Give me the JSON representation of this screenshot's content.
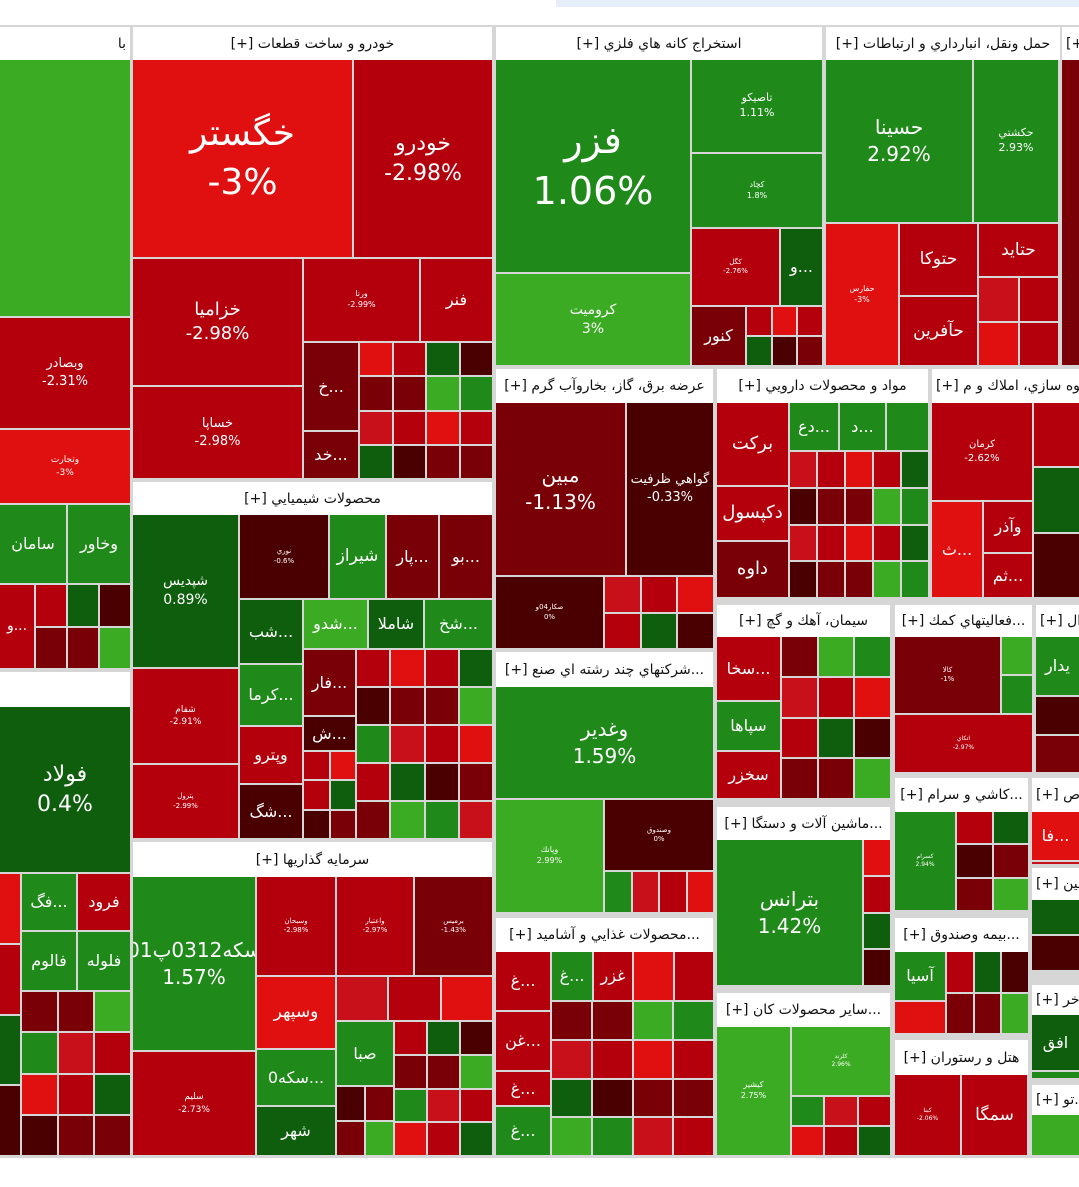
{
  "sectors": [
    {
      "title": "با",
      "tiles": [
        {
          "name": "وبصادر",
          "change": "-2.31%"
        },
        {
          "name": "وتجارت",
          "change": "-3%"
        },
        {
          "name": "وخاور"
        },
        {
          "name": "سامان"
        },
        {
          "name": "...و"
        }
      ]
    },
    {
      "title": "خودرو و ساخت قطعات [+]",
      "tiles": [
        {
          "name": "خگستر",
          "change": "-3%"
        },
        {
          "name": "خودرو",
          "change": "-2.98%"
        },
        {
          "name": "خزاميا",
          "change": "-2.98%"
        },
        {
          "name": "ورنا",
          "change": "-2.99%"
        },
        {
          "name": "فنر"
        },
        {
          "name": "خساپا",
          "change": "-2.98%"
        },
        {
          "name": "...خ"
        },
        {
          "name": "...خد"
        }
      ]
    },
    {
      "title": "محصولات شيميايي [+]",
      "tiles": [
        {
          "name": "شپديس",
          "change": "0.89%"
        },
        {
          "name": "شفام",
          "change": "-2.91%"
        },
        {
          "name": "پترول",
          "change": "-2.99%"
        },
        {
          "name": "نوري",
          "change": "-0.6%"
        },
        {
          "name": "شيراز"
        },
        {
          "name": "...پار"
        },
        {
          "name": "...بو"
        },
        {
          "name": "...شب"
        },
        {
          "name": "...شدو"
        },
        {
          "name": "شاملا"
        },
        {
          "name": "...شخ"
        },
        {
          "name": "...كرما"
        },
        {
          "name": "...فار"
        },
        {
          "name": "...ش"
        },
        {
          "name": "وپترو"
        },
        {
          "name": "...شگ"
        }
      ]
    },
    {
      "title": "سرمايه گذاريها [+]",
      "tiles": [
        {
          "name": "سكه0312پ01",
          "change": "1.57%"
        },
        {
          "name": "سليم",
          "change": "-2.73%"
        },
        {
          "name": "وسبحان",
          "change": "-2.98%"
        },
        {
          "name": "واعتبار",
          "change": "-2.97%"
        },
        {
          "name": "برميس",
          "change": "-1.43%"
        },
        {
          "name": "وسپهر"
        },
        {
          "name": "...سكه0"
        },
        {
          "name": "شهر"
        },
        {
          "name": "صبا"
        }
      ]
    },
    {
      "tiles": [
        {
          "name": "فولاد",
          "change": "0.4%"
        },
        {
          "name": "...فگ"
        },
        {
          "name": "فرود"
        },
        {
          "name": "فالوم"
        },
        {
          "name": "فلوله"
        }
      ]
    },
    {
      "title": "استخراج كانه هاي فلزي [+]",
      "tiles": [
        {
          "name": "فزر",
          "change": "1.06%"
        },
        {
          "name": "تاصيكو",
          "change": "1.11%"
        },
        {
          "name": "كچاد",
          "change": "1.8%"
        },
        {
          "name": "كروميت",
          "change": "3%"
        },
        {
          "name": "كگل",
          "change": "-2.76%"
        },
        {
          "name": "...و"
        },
        {
          "name": "كنور"
        }
      ]
    },
    {
      "title": "حمل ونقل، انبارداري و ارتباطات [+]",
      "tiles": [
        {
          "name": "حسينا",
          "change": "2.92%"
        },
        {
          "name": "حكشتي",
          "change": "2.93%"
        },
        {
          "name": "حفارس",
          "change": "-3%"
        },
        {
          "name": "حتوكا"
        },
        {
          "name": "حتايد"
        },
        {
          "name": "حآفرين"
        }
      ]
    },
    {
      "title": "[+]",
      "tiles": []
    },
    {
      "title": "عرضه برق، گاز، بخاروآب گرم [+]",
      "tiles": [
        {
          "name": "مبين",
          "change": "-1.13%"
        },
        {
          "name": "گواهي ظرفيت",
          "change": "-0.33%"
        },
        {
          "name": "صكار04و",
          "change": "0%"
        }
      ]
    },
    {
      "title": "مواد و محصولات دارويي [+]",
      "tiles": [
        {
          "name": "بركت"
        },
        {
          "name": "دكپسول"
        },
        {
          "name": "داوه"
        },
        {
          "name": "...دع"
        },
        {
          "name": "...د"
        }
      ]
    },
    {
      "title": "انبوه سازي، املاك و م [+]",
      "tiles": [
        {
          "name": "كرمان",
          "change": "-2.62%"
        },
        {
          "name": "...ث"
        },
        {
          "name": "وآذر"
        },
        {
          "name": "...ثم"
        }
      ]
    },
    {
      "title": "...شركتهاي چند رشته اي صنع [+]",
      "tiles": [
        {
          "name": "وغدير",
          "change": "1.59%"
        },
        {
          "name": "وپانك",
          "change": "2.99%"
        },
        {
          "name": "وصندوق",
          "change": "0%"
        }
      ]
    },
    {
      "title": "...محصولات غذايي و آشاميد [+]",
      "tiles": [
        {
          "name": "...غ"
        },
        {
          "name": "...غ"
        },
        {
          "name": "غزر"
        },
        {
          "name": "...غن"
        },
        {
          "name": "...غ"
        },
        {
          "name": "...غ"
        }
      ]
    },
    {
      "title": "سيمان، آهك و گچ [+]",
      "tiles": [
        {
          "name": "...سخا"
        },
        {
          "name": "سپاها"
        },
        {
          "name": "سخزر"
        }
      ]
    },
    {
      "title": "...ماشين آلات و دستگا [+]",
      "tiles": [
        {
          "name": "بترانس",
          "change": "1.42%"
        }
      ]
    },
    {
      "title": "...ساير محصولات كان [+]",
      "tiles": [
        {
          "name": "كيشير",
          "change": "2.75%"
        },
        {
          "name": "كلرند",
          "change": "2.96%"
        }
      ]
    },
    {
      "title": "...فعاليتهاي كمك [+]",
      "tiles": [
        {
          "name": "كالا",
          "change": "-1%"
        },
        {
          "name": "اتكاي",
          "change": "-2.97%"
        }
      ]
    },
    {
      "title": "...كاشي و سرام [+]",
      "tiles": [
        {
          "name": "كسرام",
          "change": "2.94%"
        }
      ]
    },
    {
      "title": "...بيمه وصندوق [+]",
      "tiles": [
        {
          "name": "آسيا"
        }
      ]
    },
    {
      "title": "هتل و رستوران [+]",
      "tiles": [
        {
          "name": "كبنا",
          "change": "-2.06%"
        },
        {
          "name": "سمگا"
        }
      ]
    },
    {
      "title": "...ال [+]",
      "tiles": [
        {
          "name": "يدار"
        }
      ]
    },
    {
      "title": "...ص [+]",
      "tiles": [
        {
          "name": "...فا"
        }
      ]
    },
    {
      "title": "...شين [+]",
      "tiles": []
    },
    {
      "title": "...خر [+]",
      "tiles": [
        {
          "name": "افق"
        }
      ]
    },
    {
      "title": "...تو [+]",
      "tiles": []
    }
  ]
}
